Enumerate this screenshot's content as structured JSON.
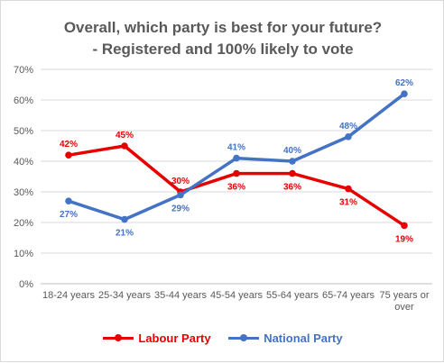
{
  "chart_data": {
    "type": "line",
    "title": "Overall, which party is best for your future?",
    "subtitle": "- Registered and 100% likely to vote",
    "categories": [
      "18-24 years",
      "25-34 years",
      "35-44 years",
      "45-54 years",
      "55-64 years",
      "65-74 years",
      "75 years or over"
    ],
    "category_lines": [
      [
        "18-24 years"
      ],
      [
        "25-34 years"
      ],
      [
        "35-44 years"
      ],
      [
        "45-54 years"
      ],
      [
        "55-64 years"
      ],
      [
        "65-74 years"
      ],
      [
        "75 years or",
        "over"
      ]
    ],
    "y_ticks": [
      "0%",
      "10%",
      "20%",
      "30%",
      "40%",
      "50%",
      "60%",
      "70%"
    ],
    "ylim": [
      0,
      70
    ],
    "grid": true,
    "legend_position": "bottom",
    "series": [
      {
        "name": "Labour Party",
        "color": "#e60000",
        "values": [
          42,
          45,
          30,
          36,
          36,
          31,
          19
        ],
        "labels": [
          "42%",
          "45%",
          "30%",
          "36%",
          "36%",
          "31%",
          "19%"
        ]
      },
      {
        "name": "National Party",
        "color": "#4472c4",
        "values": [
          27,
          21,
          29,
          41,
          40,
          48,
          62
        ],
        "labels": [
          "27%",
          "21%",
          "29%",
          "41%",
          "40%",
          "48%",
          "62%"
        ]
      }
    ]
  }
}
